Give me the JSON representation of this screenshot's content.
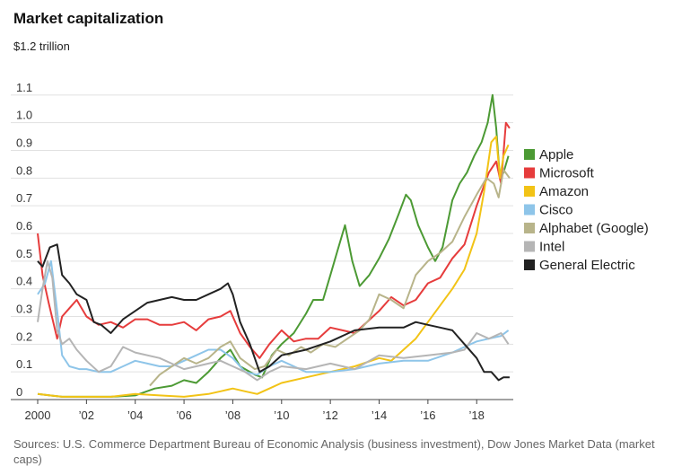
{
  "chart_data": {
    "type": "line",
    "title": "Market capitalization",
    "unit_label": "$1.2 trillion",
    "ylim": [
      0,
      1.2
    ],
    "xlim": [
      2000,
      2019.5
    ],
    "yticks": [
      {
        "v": 0,
        "label": "0"
      },
      {
        "v": 0.1,
        "label": "0.1"
      },
      {
        "v": 0.2,
        "label": "0.2"
      },
      {
        "v": 0.3,
        "label": "0.3"
      },
      {
        "v": 0.4,
        "label": "0.4"
      },
      {
        "v": 0.5,
        "label": "0.5"
      },
      {
        "v": 0.6,
        "label": "0.6"
      },
      {
        "v": 0.7,
        "label": "0.7"
      },
      {
        "v": 0.8,
        "label": "0.8"
      },
      {
        "v": 0.9,
        "label": "0.9"
      },
      {
        "v": 1.0,
        "label": "1.0"
      },
      {
        "v": 1.1,
        "label": "1.1"
      }
    ],
    "xticks": [
      {
        "v": 2000,
        "label": "2000"
      },
      {
        "v": 2002,
        "label": "’02"
      },
      {
        "v": 2004,
        "label": "’04"
      },
      {
        "v": 2006,
        "label": "’06"
      },
      {
        "v": 2008,
        "label": "’08"
      },
      {
        "v": 2010,
        "label": "’10"
      },
      {
        "v": 2012,
        "label": "’12"
      },
      {
        "v": 2014,
        "label": "’14"
      },
      {
        "v": 2016,
        "label": "’16"
      },
      {
        "v": 2018,
        "label": "’18"
      }
    ],
    "grid": true,
    "legend_position": "right",
    "series": [
      {
        "name": "Apple",
        "color": "#4c9a34",
        "x": [
          2000,
          2000.5,
          2001,
          2002,
          2003,
          2004,
          2004.8,
          2005.5,
          2006,
          2006.5,
          2007,
          2007.5,
          2007.9,
          2008.3,
          2008.9,
          2009.2,
          2009.6,
          2010,
          2010.5,
          2011,
          2011.3,
          2011.7,
          2012,
          2012.3,
          2012.6,
          2012.9,
          2013.2,
          2013.6,
          2014,
          2014.4,
          2014.8,
          2015.1,
          2015.3,
          2015.6,
          2016,
          2016.3,
          2016.6,
          2017,
          2017.3,
          2017.6,
          2017.9,
          2018.2,
          2018.45,
          2018.65,
          2018.8,
          2018.95,
          2019.1,
          2019.3
        ],
        "y": [
          0.02,
          0.015,
          0.01,
          0.01,
          0.01,
          0.015,
          0.04,
          0.05,
          0.07,
          0.06,
          0.1,
          0.15,
          0.18,
          0.12,
          0.09,
          0.08,
          0.16,
          0.2,
          0.24,
          0.31,
          0.36,
          0.36,
          0.45,
          0.54,
          0.63,
          0.5,
          0.41,
          0.45,
          0.51,
          0.58,
          0.67,
          0.74,
          0.72,
          0.63,
          0.55,
          0.5,
          0.55,
          0.72,
          0.78,
          0.82,
          0.88,
          0.93,
          1.0,
          1.1,
          0.98,
          0.8,
          0.82,
          0.88
        ]
      },
      {
        "name": "Microsoft",
        "color": "#e63c3c",
        "x": [
          2000,
          2000.2,
          2000.45,
          2000.8,
          2001,
          2001.3,
          2001.6,
          2002,
          2002.5,
          2003,
          2003.5,
          2004,
          2004.5,
          2005,
          2005.5,
          2006,
          2006.5,
          2007,
          2007.5,
          2007.9,
          2008.3,
          2008.7,
          2009.1,
          2009.5,
          2010,
          2010.5,
          2011,
          2011.5,
          2012,
          2012.5,
          2013,
          2013.5,
          2014,
          2014.5,
          2015,
          2015.5,
          2016,
          2016.5,
          2017,
          2017.5,
          2018,
          2018.5,
          2018.8,
          2019,
          2019.2,
          2019.35
        ],
        "y": [
          0.6,
          0.45,
          0.35,
          0.22,
          0.3,
          0.33,
          0.36,
          0.3,
          0.27,
          0.28,
          0.26,
          0.29,
          0.29,
          0.27,
          0.27,
          0.28,
          0.25,
          0.29,
          0.3,
          0.32,
          0.24,
          0.19,
          0.15,
          0.2,
          0.25,
          0.21,
          0.22,
          0.22,
          0.26,
          0.25,
          0.24,
          0.28,
          0.32,
          0.37,
          0.34,
          0.36,
          0.42,
          0.44,
          0.51,
          0.56,
          0.7,
          0.82,
          0.86,
          0.78,
          1.0,
          0.98
        ]
      },
      {
        "name": "Amazon",
        "color": "#f2c316",
        "x": [
          2000,
          2000.5,
          2001,
          2002,
          2003,
          2004,
          2005,
          2006,
          2007,
          2007.5,
          2008,
          2008.5,
          2009,
          2009.5,
          2010,
          2011,
          2012,
          2013,
          2014,
          2014.5,
          2015,
          2015.5,
          2016,
          2016.5,
          2017,
          2017.5,
          2018,
          2018.3,
          2018.6,
          2018.8,
          2018.95,
          2019.1,
          2019.3
        ],
        "y": [
          0.02,
          0.015,
          0.01,
          0.01,
          0.01,
          0.02,
          0.015,
          0.01,
          0.02,
          0.03,
          0.04,
          0.03,
          0.02,
          0.04,
          0.06,
          0.08,
          0.1,
          0.12,
          0.15,
          0.14,
          0.18,
          0.22,
          0.28,
          0.34,
          0.4,
          0.47,
          0.6,
          0.75,
          0.93,
          0.95,
          0.8,
          0.88,
          0.92
        ]
      },
      {
        "name": "Cisco",
        "color": "#8ec5e9",
        "x": [
          2000,
          2000.3,
          2000.55,
          2000.8,
          2001,
          2001.3,
          2001.7,
          2002,
          2002.5,
          2003,
          2003.5,
          2004,
          2004.5,
          2005,
          2005.5,
          2006,
          2006.5,
          2007,
          2007.5,
          2008,
          2008.5,
          2009,
          2009.5,
          2010,
          2011,
          2012,
          2013,
          2014,
          2015,
          2016,
          2017,
          2017.5,
          2018,
          2018.5,
          2019,
          2019.3
        ],
        "y": [
          0.38,
          0.42,
          0.5,
          0.32,
          0.16,
          0.12,
          0.11,
          0.11,
          0.1,
          0.1,
          0.12,
          0.14,
          0.13,
          0.12,
          0.12,
          0.14,
          0.16,
          0.18,
          0.18,
          0.15,
          0.1,
          0.09,
          0.12,
          0.14,
          0.1,
          0.1,
          0.11,
          0.13,
          0.14,
          0.14,
          0.17,
          0.19,
          0.21,
          0.22,
          0.23,
          0.25
        ]
      },
      {
        "name": "Alphabet (Google)",
        "color": "#b8b48a",
        "x": [
          2004.6,
          2005,
          2005.5,
          2006,
          2006.5,
          2007,
          2007.5,
          2007.9,
          2008.3,
          2008.9,
          2009.3,
          2009.8,
          2010.3,
          2010.8,
          2011.2,
          2011.7,
          2012.2,
          2012.7,
          2013.2,
          2013.6,
          2014,
          2014.5,
          2015,
          2015.5,
          2016,
          2016.5,
          2017,
          2017.5,
          2018,
          2018.4,
          2018.7,
          2018.9,
          2019.1,
          2019.35
        ],
        "y": [
          0.05,
          0.09,
          0.12,
          0.15,
          0.13,
          0.15,
          0.19,
          0.21,
          0.15,
          0.11,
          0.12,
          0.18,
          0.16,
          0.19,
          0.17,
          0.2,
          0.19,
          0.22,
          0.25,
          0.29,
          0.38,
          0.36,
          0.33,
          0.45,
          0.5,
          0.53,
          0.57,
          0.66,
          0.74,
          0.8,
          0.78,
          0.73,
          0.83,
          0.8
        ]
      },
      {
        "name": "Intel",
        "color": "#b5b5b5",
        "x": [
          2000,
          2000.2,
          2000.4,
          2000.6,
          2000.8,
          2001,
          2001.3,
          2001.6,
          2002,
          2002.5,
          2003,
          2003.5,
          2004,
          2005,
          2006,
          2007,
          2007.5,
          2008,
          2008.5,
          2009,
          2009.5,
          2010,
          2011,
          2012,
          2013,
          2014,
          2015,
          2016,
          2017,
          2017.5,
          2018,
          2018.5,
          2019,
          2019.3
        ],
        "y": [
          0.28,
          0.4,
          0.5,
          0.44,
          0.25,
          0.2,
          0.22,
          0.18,
          0.14,
          0.1,
          0.12,
          0.19,
          0.17,
          0.15,
          0.11,
          0.13,
          0.14,
          0.12,
          0.1,
          0.07,
          0.1,
          0.12,
          0.11,
          0.13,
          0.11,
          0.16,
          0.15,
          0.16,
          0.17,
          0.18,
          0.24,
          0.22,
          0.24,
          0.2
        ]
      },
      {
        "name": "General Electric",
        "color": "#222222",
        "x": [
          2000,
          2000.2,
          2000.5,
          2000.8,
          2001,
          2001.3,
          2001.6,
          2002,
          2002.3,
          2002.6,
          2003,
          2003.5,
          2004,
          2004.5,
          2005,
          2005.5,
          2006,
          2006.5,
          2007,
          2007.5,
          2007.8,
          2008,
          2008.3,
          2008.7,
          2009.1,
          2009.5,
          2010,
          2011,
          2012,
          2013,
          2014,
          2015,
          2015.5,
          2016,
          2016.5,
          2017,
          2017.5,
          2018,
          2018.3,
          2018.6,
          2018.9,
          2019.1,
          2019.35
        ],
        "y": [
          0.5,
          0.48,
          0.55,
          0.56,
          0.45,
          0.42,
          0.38,
          0.36,
          0.28,
          0.27,
          0.24,
          0.29,
          0.32,
          0.35,
          0.36,
          0.37,
          0.36,
          0.36,
          0.38,
          0.4,
          0.42,
          0.38,
          0.28,
          0.2,
          0.1,
          0.12,
          0.16,
          0.18,
          0.21,
          0.25,
          0.26,
          0.26,
          0.28,
          0.27,
          0.26,
          0.25,
          0.2,
          0.15,
          0.1,
          0.1,
          0.07,
          0.08,
          0.08
        ]
      }
    ]
  },
  "source": "Sources: U.S. Commerce Department Bureau of Economic Analysis (business investment), Dow Jones Market Data (market caps)"
}
